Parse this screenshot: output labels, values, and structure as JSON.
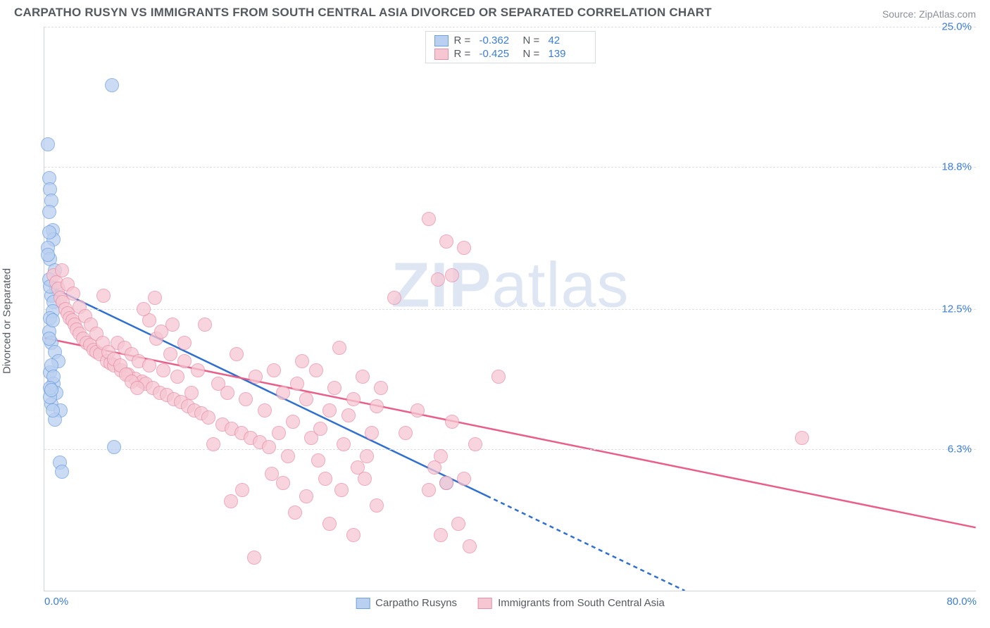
{
  "title": "CARPATHO RUSYN VS IMMIGRANTS FROM SOUTH CENTRAL ASIA DIVORCED OR SEPARATED CORRELATION CHART",
  "source": "Source: ZipAtlas.com",
  "watermark_left": "ZIP",
  "watermark_right": "atlas",
  "yaxis_label": "Divorced or Separated",
  "chart": {
    "type": "scatter",
    "xlim": [
      0,
      80
    ],
    "ylim": [
      0,
      25
    ],
    "x_ticks": [
      {
        "v": 0,
        "label": "0.0%"
      },
      {
        "v": 80,
        "label": "80.0%"
      }
    ],
    "y_ticks": [
      {
        "v": 6.3,
        "label": "6.3%"
      },
      {
        "v": 12.5,
        "label": "12.5%"
      },
      {
        "v": 18.8,
        "label": "18.8%"
      },
      {
        "v": 25.0,
        "label": "25.0%"
      }
    ],
    "grid_color": "#dcdfe4",
    "axis_color": "#d0d3d8",
    "tick_font_color": "#3b7dd8",
    "background_color": "#ffffff",
    "series": [
      {
        "name": "Carpatho Rusyns",
        "key": "carpatho",
        "point_fill": "#b9d0f0",
        "point_stroke": "#6fa0e0",
        "line_color": "#2f6fd0",
        "r_label": "R =",
        "r_value": "-0.362",
        "n_label": "N =",
        "n_value": "42",
        "trend": {
          "x1": 0,
          "y1": 13.6,
          "x2_solid": 38,
          "y2_solid": 4.2,
          "x2_dash": 55,
          "y2_dash": 0
        },
        "points": [
          [
            0.3,
            19.8
          ],
          [
            0.4,
            18.3
          ],
          [
            0.5,
            17.8
          ],
          [
            0.6,
            17.3
          ],
          [
            0.4,
            16.8
          ],
          [
            0.7,
            16.0
          ],
          [
            0.8,
            15.6
          ],
          [
            0.3,
            15.2
          ],
          [
            0.5,
            14.7
          ],
          [
            0.9,
            14.2
          ],
          [
            0.4,
            13.8
          ],
          [
            1.0,
            13.4
          ],
          [
            0.6,
            13.1
          ],
          [
            0.8,
            12.8
          ],
          [
            0.7,
            12.4
          ],
          [
            0.5,
            12.1
          ],
          [
            5.8,
            22.4
          ],
          [
            0.4,
            11.5
          ],
          [
            0.6,
            11.0
          ],
          [
            0.9,
            10.6
          ],
          [
            1.2,
            10.2
          ],
          [
            0.5,
            9.7
          ],
          [
            0.8,
            9.2
          ],
          [
            1.0,
            8.8
          ],
          [
            0.6,
            8.3
          ],
          [
            1.4,
            8.0
          ],
          [
            6.0,
            6.4
          ],
          [
            1.3,
            5.7
          ],
          [
            1.5,
            5.3
          ],
          [
            34.5,
            4.8
          ],
          [
            0.4,
            15.9
          ],
          [
            0.3,
            14.9
          ],
          [
            0.5,
            13.5
          ],
          [
            0.7,
            12.0
          ],
          [
            0.4,
            11.2
          ],
          [
            0.6,
            10.0
          ],
          [
            0.8,
            9.5
          ],
          [
            0.5,
            8.6
          ],
          [
            0.9,
            7.6
          ],
          [
            0.7,
            8.0
          ],
          [
            0.5,
            9.0
          ],
          [
            0.6,
            8.9
          ]
        ]
      },
      {
        "name": "Immigrants from South Central Asia",
        "key": "sca",
        "point_fill": "#f6c7d3",
        "point_stroke": "#e88fa8",
        "line_color": "#e85f89",
        "r_label": "R =",
        "r_value": "-0.425",
        "n_label": "N =",
        "n_value": "139",
        "trend": {
          "x1": 0,
          "y1": 11.2,
          "x2_solid": 80,
          "y2_solid": 2.8
        },
        "points": [
          [
            0.8,
            14.0
          ],
          [
            1.0,
            13.7
          ],
          [
            1.2,
            13.4
          ],
          [
            1.4,
            13.0
          ],
          [
            1.6,
            12.8
          ],
          [
            1.8,
            12.5
          ],
          [
            2.0,
            12.3
          ],
          [
            2.2,
            12.1
          ],
          [
            2.4,
            12.0
          ],
          [
            2.6,
            11.8
          ],
          [
            2.8,
            11.6
          ],
          [
            3.0,
            11.4
          ],
          [
            3.3,
            11.2
          ],
          [
            3.6,
            11.0
          ],
          [
            3.9,
            10.9
          ],
          [
            4.2,
            10.7
          ],
          [
            4.5,
            10.6
          ],
          [
            4.8,
            10.5
          ],
          [
            5.1,
            13.1
          ],
          [
            5.4,
            10.2
          ],
          [
            5.7,
            10.1
          ],
          [
            6.0,
            10.0
          ],
          [
            6.3,
            11.0
          ],
          [
            6.6,
            9.8
          ],
          [
            6.9,
            10.8
          ],
          [
            7.2,
            9.6
          ],
          [
            7.5,
            10.5
          ],
          [
            7.8,
            9.4
          ],
          [
            8.1,
            10.2
          ],
          [
            8.4,
            9.3
          ],
          [
            8.7,
            9.2
          ],
          [
            9.0,
            10.0
          ],
          [
            9.3,
            9.0
          ],
          [
            9.6,
            11.2
          ],
          [
            9.9,
            8.8
          ],
          [
            10.2,
            9.8
          ],
          [
            10.5,
            8.7
          ],
          [
            10.8,
            10.5
          ],
          [
            11.1,
            8.5
          ],
          [
            11.4,
            9.5
          ],
          [
            11.7,
            8.4
          ],
          [
            12.0,
            10.2
          ],
          [
            12.3,
            8.2
          ],
          [
            12.6,
            8.8
          ],
          [
            12.9,
            8.0
          ],
          [
            13.2,
            9.8
          ],
          [
            13.5,
            7.9
          ],
          [
            13.8,
            11.8
          ],
          [
            14.1,
            7.7
          ],
          [
            14.5,
            6.5
          ],
          [
            14.9,
            9.2
          ],
          [
            15.3,
            7.4
          ],
          [
            15.7,
            8.8
          ],
          [
            16.1,
            7.2
          ],
          [
            16.5,
            10.5
          ],
          [
            16.9,
            7.0
          ],
          [
            17.3,
            8.5
          ],
          [
            17.7,
            6.8
          ],
          [
            18.1,
            9.5
          ],
          [
            18.5,
            6.6
          ],
          [
            18.9,
            8.0
          ],
          [
            19.3,
            6.4
          ],
          [
            19.7,
            9.8
          ],
          [
            20.1,
            7.0
          ],
          [
            20.5,
            8.8
          ],
          [
            20.9,
            6.0
          ],
          [
            21.3,
            7.5
          ],
          [
            21.7,
            9.2
          ],
          [
            22.1,
            10.2
          ],
          [
            22.5,
            8.5
          ],
          [
            22.9,
            6.8
          ],
          [
            23.3,
            9.8
          ],
          [
            23.7,
            7.2
          ],
          [
            24.1,
            5.0
          ],
          [
            24.5,
            8.0
          ],
          [
            24.9,
            9.0
          ],
          [
            25.3,
            10.8
          ],
          [
            25.7,
            6.5
          ],
          [
            26.1,
            7.8
          ],
          [
            26.5,
            8.5
          ],
          [
            26.9,
            5.5
          ],
          [
            27.3,
            9.5
          ],
          [
            27.7,
            6.0
          ],
          [
            28.1,
            7.0
          ],
          [
            28.5,
            8.2
          ],
          [
            28.9,
            9.0
          ],
          [
            30.0,
            13.0
          ],
          [
            16.0,
            4.0
          ],
          [
            17.0,
            4.5
          ],
          [
            18.0,
            1.5
          ],
          [
            19.5,
            5.2
          ],
          [
            20.5,
            4.8
          ],
          [
            21.5,
            3.5
          ],
          [
            22.5,
            4.2
          ],
          [
            23.5,
            5.8
          ],
          [
            24.5,
            3.0
          ],
          [
            25.5,
            4.5
          ],
          [
            26.5,
            2.5
          ],
          [
            27.5,
            5.0
          ],
          [
            28.5,
            3.8
          ],
          [
            33.0,
            16.5
          ],
          [
            36.0,
            15.2
          ],
          [
            34.5,
            15.5
          ],
          [
            35.0,
            14.0
          ],
          [
            33.8,
            13.8
          ],
          [
            31.0,
            7.0
          ],
          [
            32.0,
            8.0
          ],
          [
            33.0,
            4.5
          ],
          [
            34.0,
            6.0
          ],
          [
            35.0,
            7.5
          ],
          [
            36.0,
            5.0
          ],
          [
            37.0,
            6.5
          ],
          [
            34.0,
            2.5
          ],
          [
            35.5,
            3.0
          ],
          [
            36.5,
            2.0
          ],
          [
            34.5,
            4.8
          ],
          [
            33.5,
            5.5
          ],
          [
            39.0,
            9.5
          ],
          [
            65.0,
            6.8
          ],
          [
            1.5,
            14.2
          ],
          [
            2.0,
            13.6
          ],
          [
            2.5,
            13.2
          ],
          [
            3.0,
            12.6
          ],
          [
            3.5,
            12.2
          ],
          [
            4.0,
            11.8
          ],
          [
            4.5,
            11.4
          ],
          [
            5.0,
            11.0
          ],
          [
            5.5,
            10.6
          ],
          [
            6.0,
            10.3
          ],
          [
            6.5,
            10.0
          ],
          [
            7.0,
            9.6
          ],
          [
            7.5,
            9.3
          ],
          [
            8.0,
            9.0
          ],
          [
            9.0,
            12.0
          ],
          [
            10.0,
            11.5
          ],
          [
            11.0,
            11.8
          ],
          [
            12.0,
            11.0
          ],
          [
            8.5,
            12.5
          ],
          [
            9.5,
            13.0
          ]
        ]
      }
    ]
  }
}
